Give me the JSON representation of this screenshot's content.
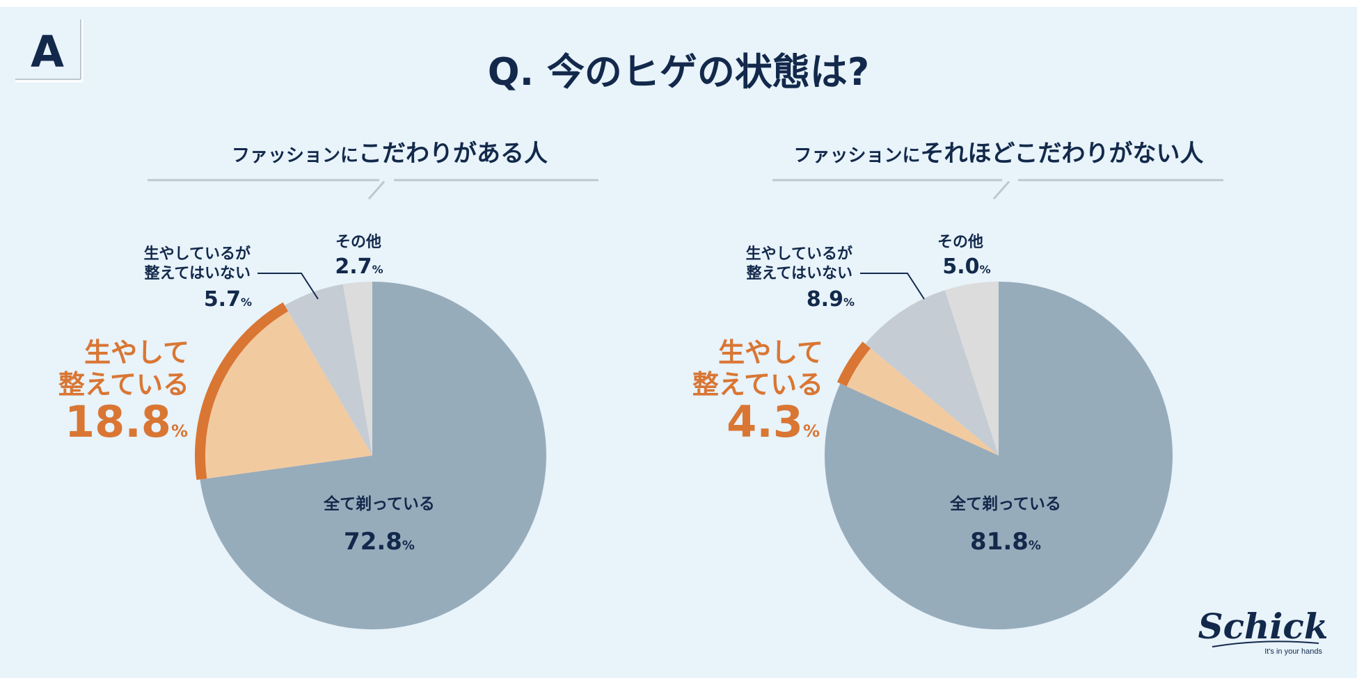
{
  "badge": "A",
  "title": "Q. 今のヒゲの状態は?",
  "percent_sign": "%",
  "colors": {
    "navy": "#13294b",
    "orange": "#d97633",
    "shaved": "#97acbb",
    "groomed": "#f2caa0",
    "ungroomed": "#c5ccd4",
    "other": "#dcdcdc",
    "rule": "#bcc8d1"
  },
  "chart_data": [
    {
      "type": "pie",
      "title_prefix": "ファッションに",
      "title_emph": "こだわりがある人",
      "slices": [
        {
          "key": "shaved",
          "label": [
            "全て剃っている"
          ],
          "value": 72.8
        },
        {
          "key": "groomed",
          "label": [
            "生やして",
            "整えている"
          ],
          "value": 18.8
        },
        {
          "key": "ungroomed",
          "label": [
            "生やしているが",
            "整えてはいない"
          ],
          "value": 5.7
        },
        {
          "key": "other",
          "label": [
            "その他"
          ],
          "value": 2.7
        }
      ]
    },
    {
      "type": "pie",
      "title_prefix": "ファッションに",
      "title_emph": "それほどこだわりがない人",
      "slices": [
        {
          "key": "shaved",
          "label": [
            "全て剃っている"
          ],
          "value": 81.8
        },
        {
          "key": "groomed",
          "label": [
            "生やして",
            "整えている"
          ],
          "value": 4.3
        },
        {
          "key": "ungroomed",
          "label": [
            "生やしているが",
            "整えてはいない"
          ],
          "value": 8.9
        },
        {
          "key": "other",
          "label": [
            "その他"
          ],
          "value": 5.0
        }
      ]
    }
  ],
  "logo": {
    "brand": "Schick",
    "tagline": "It's in your hands"
  }
}
